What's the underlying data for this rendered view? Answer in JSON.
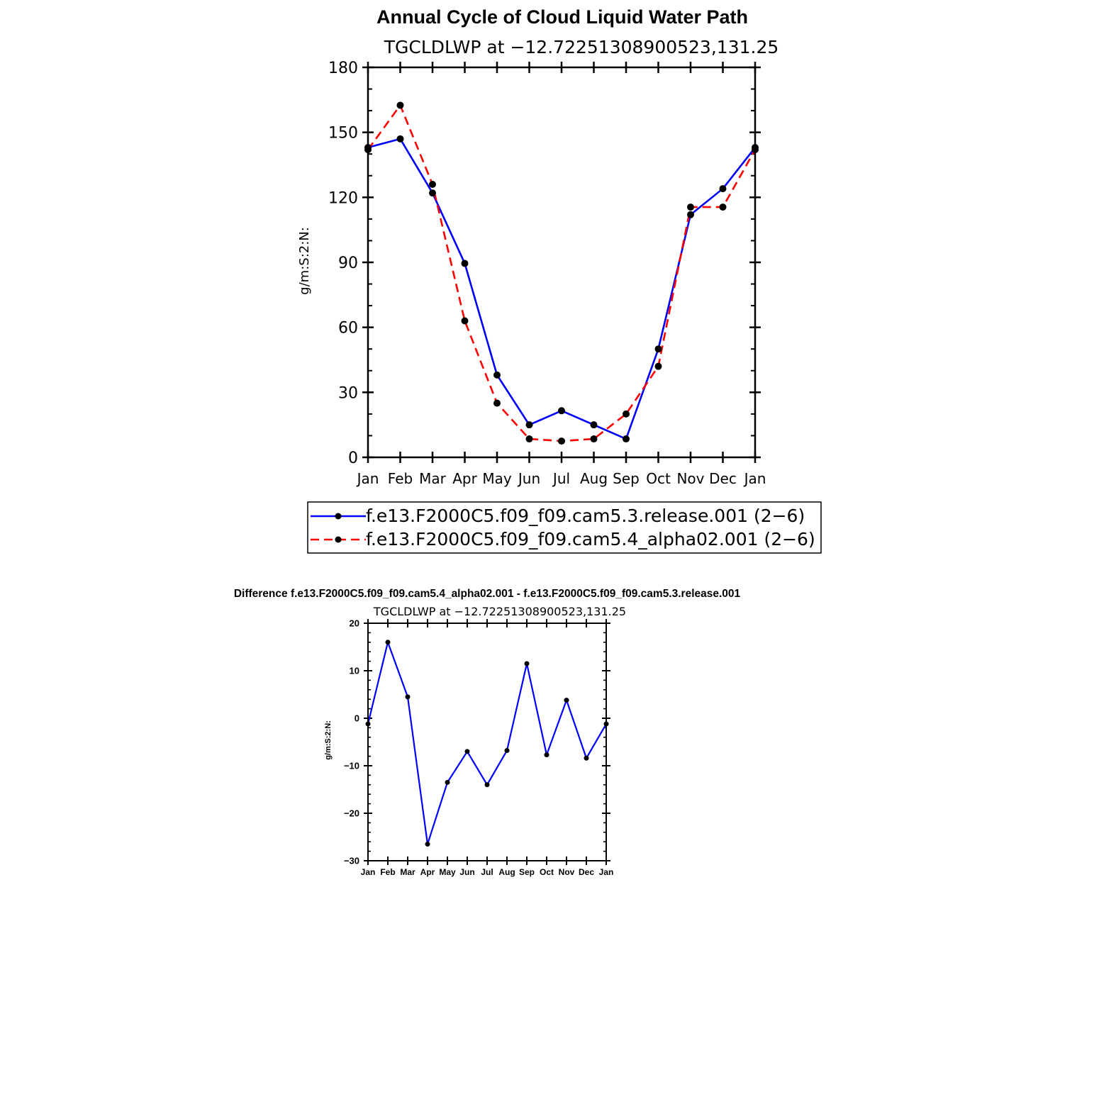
{
  "chart_data": [
    {
      "type": "line",
      "title": "Annual Cycle of Cloud Liquid Water Path",
      "subtitle": "TGCLDLWP  at  −12.72251308900523,131.25",
      "ylabel": "g/m:S:2:N:",
      "xlabel": "",
      "ylim": [
        0,
        180
      ],
      "yticks": [
        "0",
        "30",
        "60",
        "90",
        "120",
        "150",
        "180"
      ],
      "categories": [
        "Jan",
        "Feb",
        "Mar",
        "Apr",
        "May",
        "Jun",
        "Jul",
        "Aug",
        "Sep",
        "Oct",
        "Nov",
        "Dec",
        "Jan"
      ],
      "series": [
        {
          "name": "f.e13.F2000C5.f09_f09.cam5.3.release.001 (2−6)",
          "color": "#0000ff",
          "dash": "solid",
          "values": [
            143,
            147,
            122,
            89.5,
            38,
            15,
            21.5,
            15,
            8.5,
            50,
            112,
            124,
            143
          ]
        },
        {
          "name": "f.e13.F2000C5.f09_f09.cam5.4_alpha02.001 (2−6)",
          "color": "#ff0000",
          "dash": "dashed",
          "values": [
            142,
            162.5,
            126,
            63,
            25,
            8.5,
            7.5,
            8.5,
            20,
            42,
            115.5,
            115.5,
            142
          ]
        }
      ],
      "legend": "bottom",
      "grid": false
    },
    {
      "type": "line",
      "title": "Difference f.e13.F2000C5.f09_f09.cam5.4_alpha02.001 - f.e13.F2000C5.f09_f09.cam5.3.release.001",
      "subtitle": "TGCLDLWP  at  −12.72251308900523,131.25",
      "ylabel": "g/m:S:2:N:",
      "xlabel": "",
      "ylim": [
        -30,
        20
      ],
      "yticks": [
        "−30",
        "−20",
        "−10",
        "0",
        "10",
        "20"
      ],
      "categories": [
        "Jan",
        "Feb",
        "Mar",
        "Apr",
        "May",
        "Jun",
        "Jul",
        "Aug",
        "Sep",
        "Oct",
        "Nov",
        "Dec",
        "Jan"
      ],
      "series": [
        {
          "color": "#0000ff",
          "dash": "solid",
          "values": [
            -1.2,
            16,
            4.5,
            -26.5,
            -13.5,
            -7,
            -14,
            -6.8,
            11.5,
            -7.7,
            3.8,
            -8.4,
            -1.2
          ]
        }
      ],
      "grid": false
    }
  ]
}
